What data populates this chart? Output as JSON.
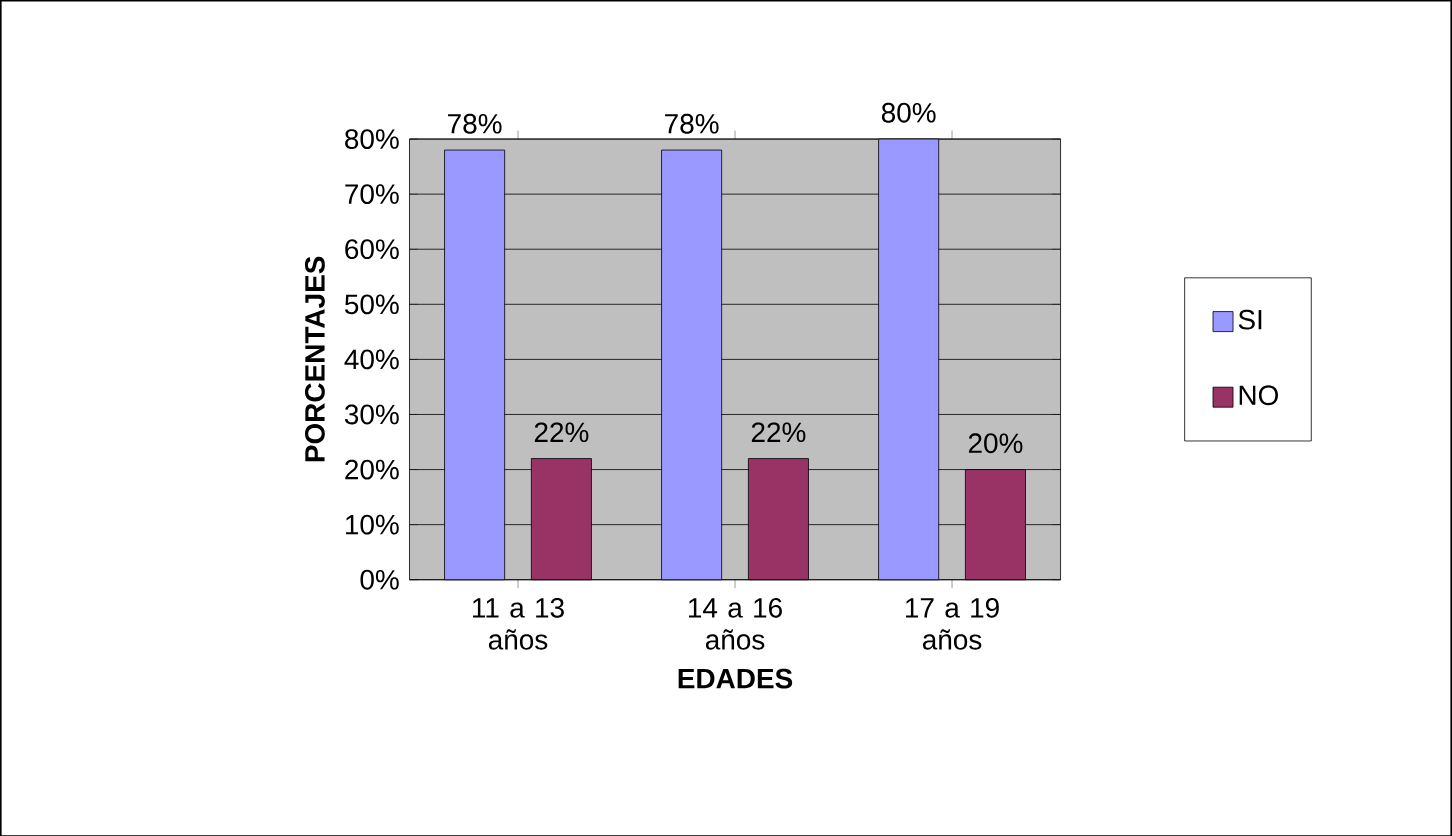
{
  "chart_data": {
    "type": "bar",
    "xlabel": "EDADES",
    "ylabel": "PORCENTAJES",
    "categories": [
      "11 a 13 años",
      "14 a 16 años",
      "17 a 19 años"
    ],
    "series": [
      {
        "name": "SI",
        "color": "#9999ff",
        "values": [
          78,
          78,
          80
        ],
        "value_labels": [
          "78%",
          "78%",
          "80%"
        ]
      },
      {
        "name": "NO",
        "color": "#993366",
        "values": [
          22,
          22,
          20
        ],
        "value_labels": [
          "22%",
          "22%",
          "20%"
        ]
      }
    ],
    "ylim": [
      0,
      80
    ],
    "yticks": [
      {
        "value": 0,
        "label": "0%"
      },
      {
        "value": 10,
        "label": "10%"
      },
      {
        "value": 20,
        "label": "20%"
      },
      {
        "value": 30,
        "label": "30%"
      },
      {
        "value": 40,
        "label": "40%"
      },
      {
        "value": 50,
        "label": "50%"
      },
      {
        "value": 60,
        "label": "60%"
      },
      {
        "value": 70,
        "label": "70%"
      },
      {
        "value": 80,
        "label": "80%"
      }
    ],
    "grid": "y",
    "legend": "right"
  }
}
